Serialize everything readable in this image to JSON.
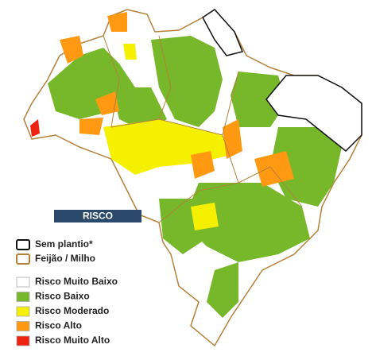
{
  "legend": {
    "title": "RISCO",
    "outlines": [
      {
        "label": "Sem plantio*",
        "color": "#111111"
      },
      {
        "label": "Feijão / Milho",
        "color": "#b5813a"
      }
    ],
    "fills": [
      {
        "label": "Risco Muito Baixo",
        "color": "#ffffff"
      },
      {
        "label": "Risco Baixo",
        "color": "#77b82a"
      },
      {
        "label": "Risco Moderado",
        "color": "#f5f000"
      },
      {
        "label": "Risco Alto",
        "color": "#ff9912"
      },
      {
        "label": "Risco Muito Alto",
        "color": "#ee2211"
      }
    ]
  }
}
